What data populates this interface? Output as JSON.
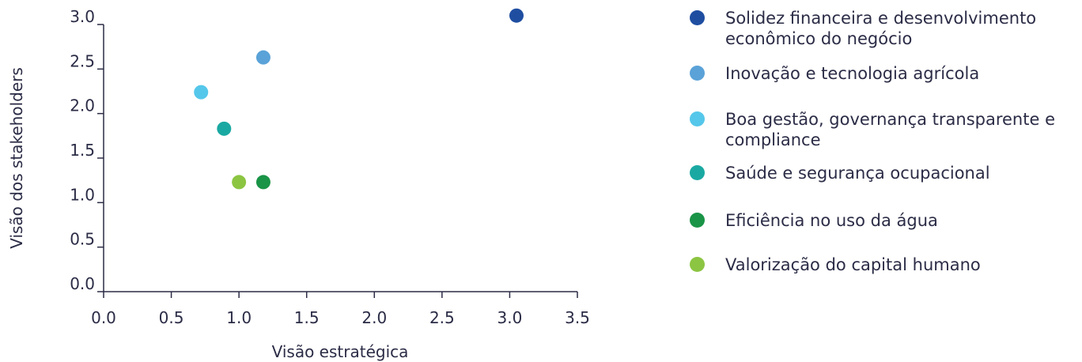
{
  "chart_data": {
    "type": "scatter",
    "xlabel": "Visão estratégica",
    "ylabel": "Visão dos stakeholders",
    "xlim": [
      0,
      3.5
    ],
    "ylim": [
      0,
      3.0
    ],
    "xticks": [
      "0.0",
      "0.5",
      "1.0",
      "1.5",
      "2.0",
      "2.5",
      "3.0",
      "3.5"
    ],
    "yticks": [
      "0.0",
      "0.5",
      "1.0",
      "1.5",
      "2.0",
      "2.5",
      "3.0"
    ],
    "grid": false,
    "legend_position": "right",
    "series": [
      {
        "name": "Solidez financeira e desenvolvimento econômico do negócio",
        "color": "#1f4ea1",
        "x": 3.05,
        "y": 3.1
      },
      {
        "name": "Inovação e tecnologia agrícola",
        "color": "#5aa2d8",
        "x": 1.18,
        "y": 2.63
      },
      {
        "name": "Boa gestão, governança transparente e compliance",
        "color": "#55c7ea",
        "x": 0.72,
        "y": 2.24
      },
      {
        "name": "Saúde e segurança ocupacional",
        "color": "#1aa9a2",
        "x": 0.89,
        "y": 1.83
      },
      {
        "name": "Eficiência no uso da água",
        "color": "#1a9447",
        "x": 1.18,
        "y": 1.23
      },
      {
        "name": "Valorização do capital humano",
        "color": "#8cc542",
        "x": 1.0,
        "y": 1.23
      }
    ]
  }
}
